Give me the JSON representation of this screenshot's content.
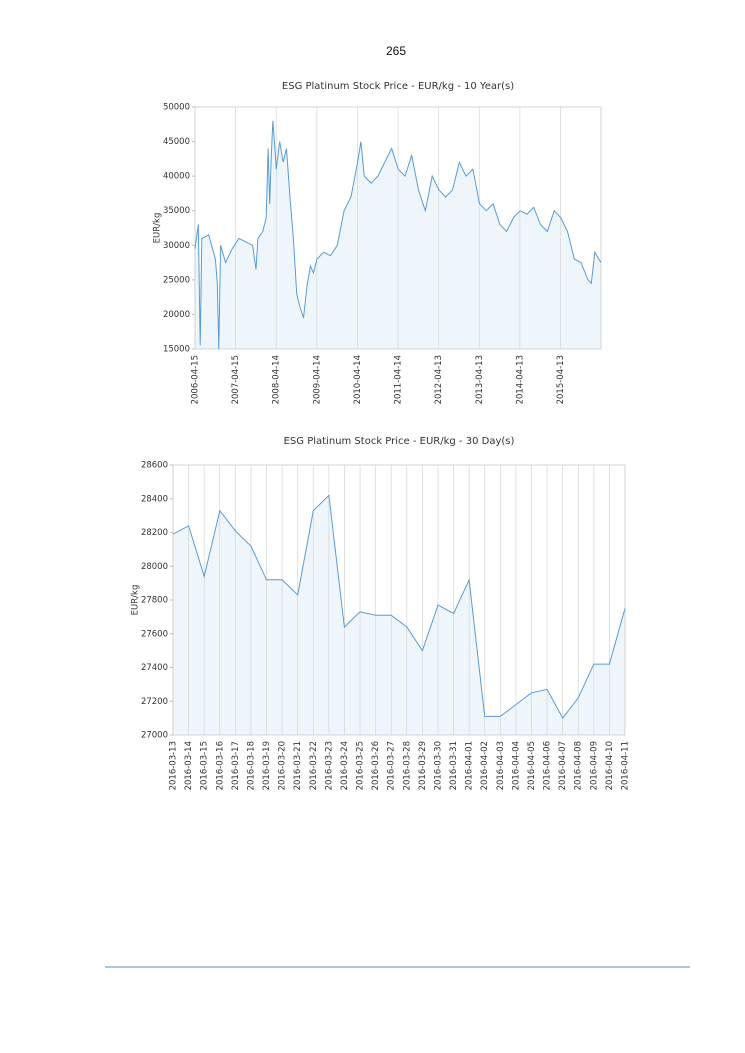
{
  "page_number": "265",
  "chart_data": [
    {
      "type": "area",
      "title": "ESG Platinum Stock Price - EUR/kg - 10 Year(s)",
      "ylabel": "EUR/kg",
      "color": "#5a9bd5",
      "fill_color": "#eef6fc",
      "grid": "x",
      "xlim": [
        "2006-04-15",
        "2016-04-11"
      ],
      "xticks": [
        "2006-04-15",
        "2007-04-15",
        "2008-04-14",
        "2009-04-14",
        "2010-04-14",
        "2011-04-14",
        "2012-04-13",
        "2013-04-13",
        "2014-04-13",
        "2015-04-13"
      ],
      "ylim": [
        15000,
        50000
      ],
      "yticks": [
        15000,
        20000,
        25000,
        30000,
        35000,
        40000,
        45000,
        50000
      ],
      "x": [
        "2006-04-15",
        "2006-05-15",
        "2006-06-01",
        "2006-06-15",
        "2006-08-15",
        "2006-10-15",
        "2006-11-01",
        "2006-11-15",
        "2006-12-01",
        "2007-01-15",
        "2007-03-15",
        "2007-05-15",
        "2007-07-15",
        "2007-09-15",
        "2007-10-15",
        "2007-11-01",
        "2007-12-15",
        "2008-01-15",
        "2008-02-01",
        "2008-02-15",
        "2008-03-01",
        "2008-03-15",
        "2008-04-15",
        "2008-05-15",
        "2008-06-15",
        "2008-07-15",
        "2008-08-15",
        "2008-09-15",
        "2008-10-15",
        "2008-11-15",
        "2008-12-15",
        "2009-01-15",
        "2009-02-15",
        "2009-03-15",
        "2009-04-15",
        "2009-06-15",
        "2009-08-15",
        "2009-10-15",
        "2009-12-15",
        "2010-02-15",
        "2010-04-15",
        "2010-05-15",
        "2010-06-15",
        "2010-08-15",
        "2010-10-15",
        "2010-12-15",
        "2011-02-15",
        "2011-04-15",
        "2011-06-15",
        "2011-08-15",
        "2011-10-15",
        "2011-12-15",
        "2012-02-15",
        "2012-04-15",
        "2012-06-15",
        "2012-08-15",
        "2012-10-15",
        "2012-12-15",
        "2013-02-15",
        "2013-04-15",
        "2013-06-15",
        "2013-08-15",
        "2013-10-15",
        "2013-12-15",
        "2014-02-15",
        "2014-04-15",
        "2014-06-15",
        "2014-08-15",
        "2014-10-15",
        "2014-12-15",
        "2015-02-15",
        "2015-04-15",
        "2015-06-15",
        "2015-08-15",
        "2015-10-15",
        "2015-12-15",
        "2016-01-15",
        "2016-02-15",
        "2016-04-11"
      ],
      "values": [
        29500,
        33000,
        15500,
        31000,
        31500,
        28000,
        24500,
        15000,
        30000,
        27500,
        29500,
        31000,
        30500,
        30000,
        26500,
        31000,
        32000,
        34000,
        44000,
        36000,
        43000,
        48000,
        41000,
        45000,
        42000,
        44000,
        37000,
        31000,
        23000,
        21000,
        19500,
        24000,
        27000,
        26000,
        28000,
        29000,
        28500,
        30000,
        35000,
        37000,
        42000,
        45000,
        40000,
        39000,
        40000,
        42000,
        44000,
        41000,
        40000,
        43000,
        38000,
        35000,
        40000,
        38000,
        37000,
        38000,
        42000,
        40000,
        41000,
        36000,
        35000,
        36000,
        33000,
        32000,
        34000,
        35000,
        34500,
        35500,
        33000,
        32000,
        35000,
        34000,
        32000,
        28000,
        27500,
        25000,
        24500,
        29000,
        27500
      ]
    },
    {
      "type": "area",
      "title": "ESG Platinum Stock Price - EUR/kg - 30 Day(s)",
      "ylabel": "EUR/kg",
      "color": "#5a9bd5",
      "fill_color": "#eef6fc",
      "grid": "x",
      "ylim": [
        27000,
        28600
      ],
      "yticks": [
        27000,
        27200,
        27400,
        27600,
        27800,
        28000,
        28200,
        28400,
        28600
      ],
      "categories": [
        "2016-03-13",
        "2016-03-14",
        "2016-03-15",
        "2016-03-16",
        "2016-03-17",
        "2016-03-18",
        "2016-03-19",
        "2016-03-20",
        "2016-03-21",
        "2016-03-22",
        "2016-03-23",
        "2016-03-24",
        "2016-03-25",
        "2016-03-26",
        "2016-03-27",
        "2016-03-28",
        "2016-03-29",
        "2016-03-30",
        "2016-03-31",
        "2016-04-01",
        "2016-04-02",
        "2016-04-03",
        "2016-04-04",
        "2016-04-05",
        "2016-04-06",
        "2016-04-07",
        "2016-04-08",
        "2016-04-09",
        "2016-04-10",
        "2016-04-11"
      ],
      "values": [
        28190,
        28240,
        27940,
        28330,
        28210,
        28120,
        27920,
        27920,
        27830,
        28330,
        28420,
        27640,
        27730,
        27710,
        27710,
        27640,
        27500,
        27770,
        27720,
        27920,
        27110,
        27110,
        27180,
        27250,
        27270,
        27100,
        27220,
        27420,
        27420,
        27750
      ]
    }
  ]
}
